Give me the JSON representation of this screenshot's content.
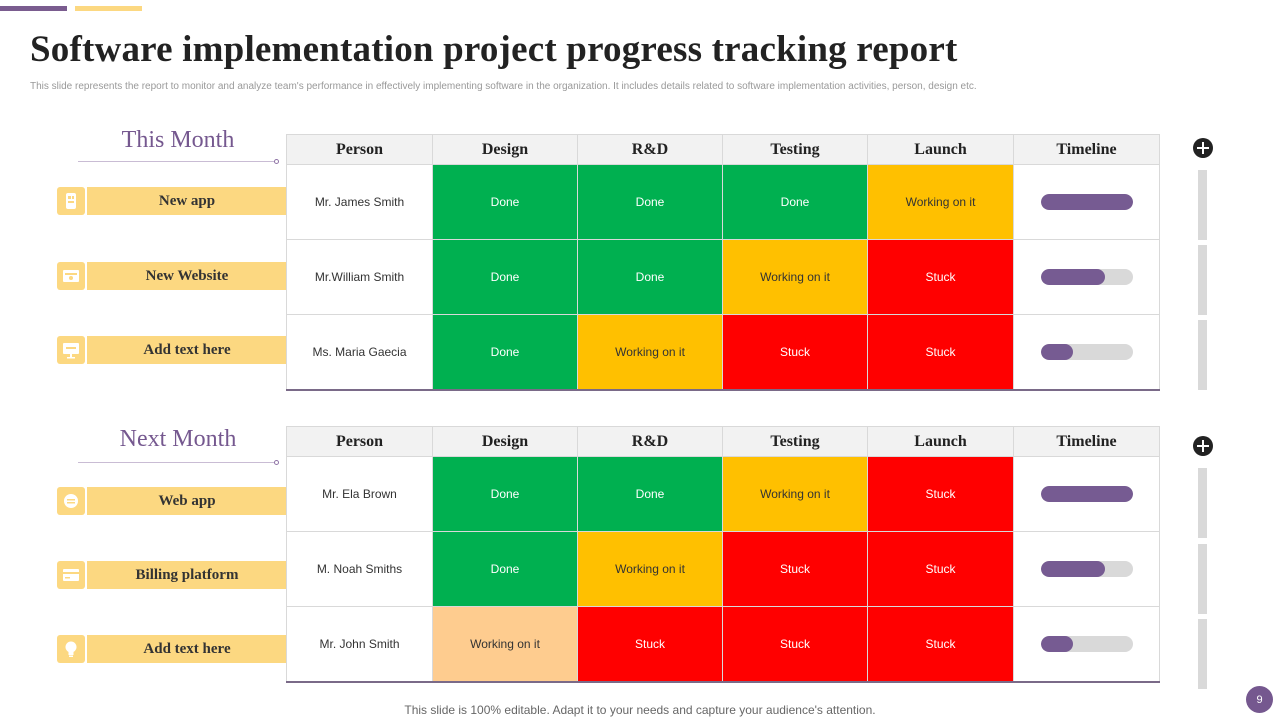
{
  "title": "Software implementation project progress tracking report",
  "subtitle": "This slide represents the report to monitor and analyze team's performance in effectively implementing software in the organization. It includes details related to software implementation activities, person, design etc.",
  "columns": [
    "Person",
    "Design",
    "R&D",
    "Testing",
    "Launch",
    "Timeline"
  ],
  "sections": [
    {
      "label": "This Month",
      "rows": [
        {
          "project": "New app",
          "icon": "mobile-app-icon",
          "person": "Mr. James Smith",
          "design": "Done",
          "rnd": "Done",
          "testing": "Done",
          "launch": "Working on it",
          "timeline_progress": 1.0
        },
        {
          "project": "New Website",
          "icon": "website-icon",
          "person": "Mr.William Smith",
          "design": "Done",
          "rnd": "Done",
          "testing": "Working on it",
          "launch": "Stuck",
          "timeline_progress": 0.7
        },
        {
          "project": "Add text here",
          "icon": "presentation-icon",
          "person": "Ms. Maria Gaecia",
          "design": "Done",
          "rnd": "Working on it",
          "testing": "Stuck",
          "launch": "Stuck",
          "timeline_progress": 0.35
        }
      ]
    },
    {
      "label": "Next  Month",
      "rows": [
        {
          "project": "Web app",
          "icon": "web-app-icon",
          "person": "Mr.  Ela Brown",
          "design": "Done",
          "rnd": "Done",
          "testing": "Working on it",
          "launch": "Stuck",
          "timeline_progress": 1.0
        },
        {
          "project": "Billing platform",
          "icon": "billing-icon",
          "person": "M.  Noah Smiths",
          "design": "Done",
          "rnd": "Working on it",
          "testing": "Stuck",
          "launch": "Stuck",
          "timeline_progress": 0.7
        },
        {
          "project": "Add text here",
          "icon": "idea-icon",
          "person": "Mr.  John Smith",
          "design": "Working on it",
          "rnd": "Stuck",
          "testing": "Stuck",
          "launch": "Stuck",
          "timeline_progress": 0.35
        }
      ]
    }
  ],
  "colors": {
    "done": "#00b050",
    "working": "#ffc000",
    "stuck": "#ff0000",
    "working_light": "#fecc8f",
    "accent": "#75588f",
    "label_bg": "#fcd881"
  },
  "footer": "This slide is 100% editable. Adapt it to your needs and capture your audience's attention.",
  "page_number": "9"
}
